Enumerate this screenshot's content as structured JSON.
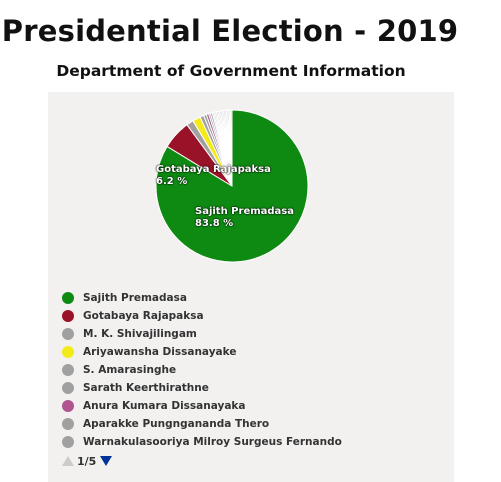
{
  "title": "Presidential Election - 2019",
  "subtitle": "Department of Government Information",
  "chart_data": {
    "type": "pie",
    "slices": [
      {
        "name": "Sajith Premadasa",
        "value": 83.8,
        "color": "#0e8a12",
        "label": "Sajith Premadasa",
        "value_label": "83.8 %"
      },
      {
        "name": "Gotabaya Rajapaksa",
        "value": 6.2,
        "color": "#9a1228",
        "label": "Gotabaya Rajapaksa",
        "value_label": "6.2 %"
      },
      {
        "name": "M. K. Shivajilingam",
        "value": 1.5,
        "color": "#a0a0a0"
      },
      {
        "name": "Ariyawansha Dissanayake",
        "value": 1.7,
        "color": "#f4ea1a"
      },
      {
        "name": "S. Amarasinghe",
        "value": 0.8,
        "color": "#a0a0a0"
      },
      {
        "name": "Sarath Keerthirathne",
        "value": 0.6,
        "color": "#a0a0a0"
      },
      {
        "name": "Anura Kumara Dissanayaka",
        "value": 0.5,
        "color": "#b0538f"
      },
      {
        "name": "Aparakke Pungnganandа Thero",
        "value": 0.4,
        "color": "#a0a0a0"
      },
      {
        "name": "Warnakulasooriya Milroy Surgeus Fernando",
        "value": 0.4,
        "color": "#a0a0a0"
      },
      {
        "name": "",
        "value": 0.3,
        "color": "#c4c4c4"
      },
      {
        "name": "",
        "value": 0.3,
        "color": "#c4c4c4"
      },
      {
        "name": "",
        "value": 0.3,
        "color": "#c4c4c4"
      },
      {
        "name": "",
        "value": 0.3,
        "color": "#c4c4c4"
      },
      {
        "name": "",
        "value": 0.3,
        "color": "#c4c4c4"
      },
      {
        "name": "",
        "value": 0.3,
        "color": "#c4c4c4"
      },
      {
        "name": "",
        "value": 0.3,
        "color": "#c4c4c4"
      },
      {
        "name": "",
        "value": 0.3,
        "color": "#c4c4c4"
      },
      {
        "name": "",
        "value": 0.3,
        "color": "#c4c4c4"
      },
      {
        "name": "",
        "value": 0.3,
        "color": "#c4c4c4"
      },
      {
        "name": "",
        "value": 0.3,
        "color": "#c4c4c4"
      },
      {
        "name": "",
        "value": 0.3,
        "color": "#c4c4c4"
      },
      {
        "name": "",
        "value": 0.3,
        "color": "#c4c4c4"
      },
      {
        "name": "",
        "value": 0.3,
        "color": "#c4c4c4"
      }
    ],
    "legend": {
      "items": [
        {
          "label": "Sajith Premadasa",
          "color": "#0e8a12"
        },
        {
          "label": "Gotabaya Rajapaksa",
          "color": "#9a1228"
        },
        {
          "label": "M. K. Shivajilingam",
          "color": "#a0a0a0"
        },
        {
          "label": "Ariyawansha Dissanayake",
          "color": "#f4ea1a"
        },
        {
          "label": "S. Amarasinghe",
          "color": "#a0a0a0"
        },
        {
          "label": "Sarath Keerthirathne",
          "color": "#a0a0a0"
        },
        {
          "label": "Anura Kumara Dissanayaka",
          "color": "#b0538f"
        },
        {
          "label": "Aparakke Pungngananda Thero",
          "color": "#a0a0a0"
        },
        {
          "label": "Warnakulasooriya Milroy Surgeus Fernando",
          "color": "#a0a0a0"
        }
      ],
      "page_indicator": "1/5",
      "placement": "bottom-left"
    }
  }
}
